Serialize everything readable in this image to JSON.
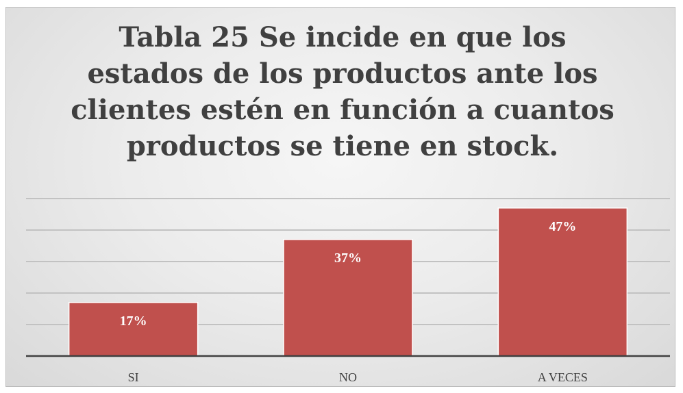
{
  "chart_data": {
    "type": "bar",
    "title": "Tabla 25 Se incide en que los estados de los productos ante los clientes estén en función a cuantos productos se tiene en stock.",
    "categories": [
      "SI",
      "NO",
      "A VECES"
    ],
    "values": [
      17,
      37,
      47
    ],
    "data_labels": [
      "17%",
      "37%",
      "47%"
    ],
    "ylim": [
      0,
      50
    ],
    "grid": true,
    "legend": "none",
    "bar_color": "#c0504d"
  }
}
